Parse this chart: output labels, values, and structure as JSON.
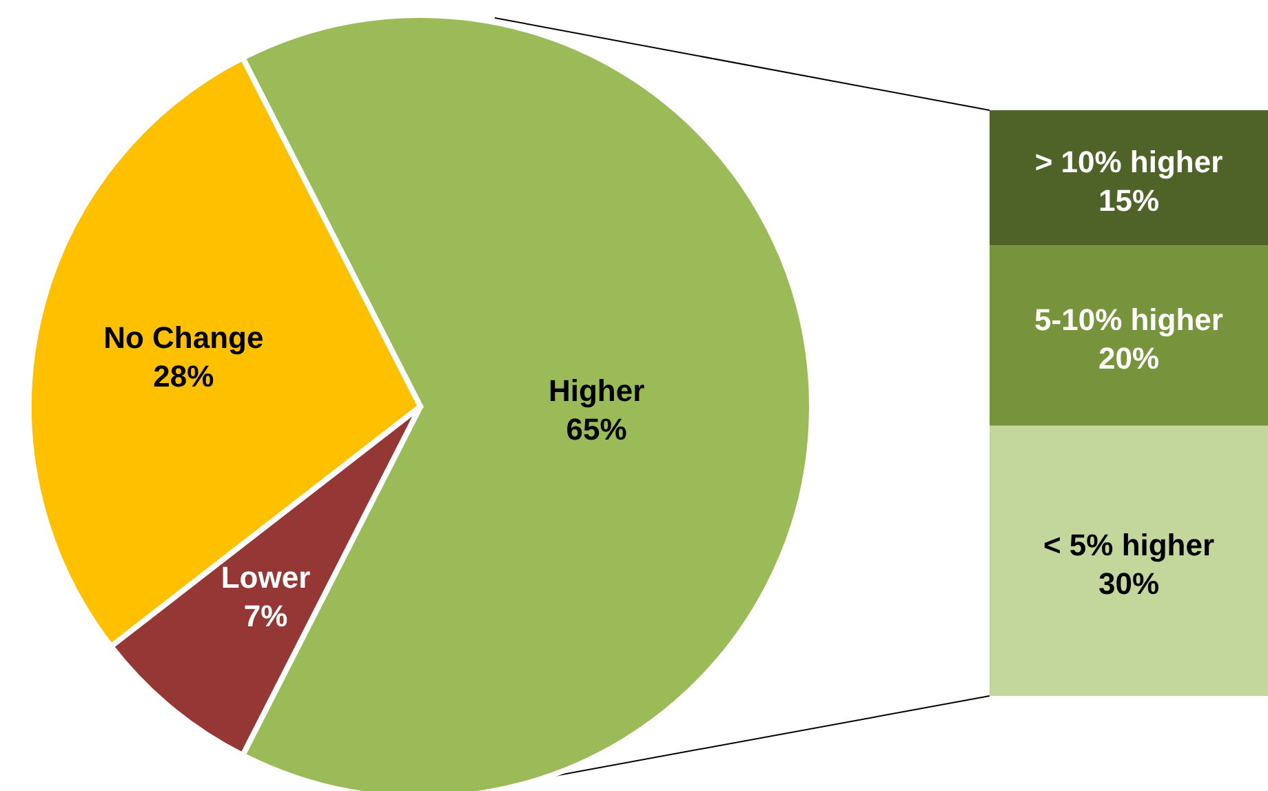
{
  "chart_data": [
    {
      "type": "pie",
      "categories": [
        "Higher",
        "No Change",
        "Lower"
      ],
      "values": [
        65,
        28,
        7
      ],
      "colors": [
        "#9bbb59",
        "#ffc000",
        "#953735"
      ],
      "value_labels": [
        "65%",
        "28%",
        "7%"
      ]
    },
    {
      "type": "bar",
      "stacked": true,
      "categories": [
        null
      ],
      "series": [
        {
          "name": "< 5% higher",
          "color": "#c3d69b",
          "values": [
            30
          ],
          "value_labels": [
            "30%"
          ]
        },
        {
          "name": "5-10% higher",
          "color": "#77933c",
          "values": [
            20
          ],
          "value_labels": [
            "20%"
          ]
        },
        {
          "name": "> 10% higher",
          "color": "#4f6228",
          "values": [
            15
          ],
          "value_labels": [
            "15%"
          ]
        }
      ]
    }
  ]
}
